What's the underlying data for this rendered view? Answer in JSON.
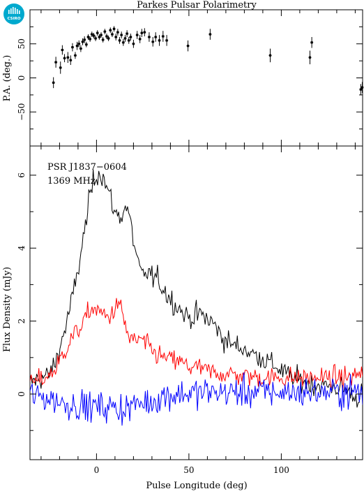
{
  "header": {
    "title": "Parkes Pulsar Polarimetry",
    "logo_text": "CSIRO"
  },
  "chart_data": [
    {
      "type": "scatter",
      "panel": "top",
      "ylabel": "P.A. (deg.)",
      "xlim": [
        -36,
        144
      ],
      "ylim": [
        -100,
        100
      ],
      "yticks": [
        -50,
        0,
        50
      ],
      "xticks": [
        0,
        50,
        100
      ],
      "points": [
        {
          "x": -23.3,
          "y": -7,
          "err": 8
        },
        {
          "x": -22.0,
          "y": 23,
          "err": 8
        },
        {
          "x": -19.5,
          "y": 15,
          "err": 9
        },
        {
          "x": -18.5,
          "y": 41,
          "err": 7
        },
        {
          "x": -17.3,
          "y": 29,
          "err": 6
        },
        {
          "x": -15.5,
          "y": 30,
          "err": 8
        },
        {
          "x": -14.0,
          "y": 26,
          "err": 7
        },
        {
          "x": -13.0,
          "y": 45,
          "err": 6
        },
        {
          "x": -11.5,
          "y": 33,
          "err": 5
        },
        {
          "x": -10.5,
          "y": 47,
          "err": 6
        },
        {
          "x": -9.5,
          "y": 50,
          "err": 5
        },
        {
          "x": -8.5,
          "y": 43,
          "err": 5
        },
        {
          "x": -7.5,
          "y": 53,
          "err": 5
        },
        {
          "x": -6.5,
          "y": 56,
          "err": 5
        },
        {
          "x": -5.5,
          "y": 49,
          "err": 4
        },
        {
          "x": -4.5,
          "y": 60,
          "err": 4
        },
        {
          "x": -3.5,
          "y": 57,
          "err": 4
        },
        {
          "x": -2.5,
          "y": 64,
          "err": 4
        },
        {
          "x": -1.5,
          "y": 62,
          "err": 4
        },
        {
          "x": -0.5,
          "y": 58,
          "err": 4
        },
        {
          "x": 0.5,
          "y": 66,
          "err": 4
        },
        {
          "x": 1.5,
          "y": 60,
          "err": 4
        },
        {
          "x": 2.5,
          "y": 63,
          "err": 4
        },
        {
          "x": 3.5,
          "y": 56,
          "err": 4
        },
        {
          "x": 4.5,
          "y": 68,
          "err": 4
        },
        {
          "x": 5.5,
          "y": 61,
          "err": 4
        },
        {
          "x": 6.5,
          "y": 58,
          "err": 4
        },
        {
          "x": 7.5,
          "y": 70,
          "err": 4
        },
        {
          "x": 8.5,
          "y": 64,
          "err": 4
        },
        {
          "x": 9.5,
          "y": 72,
          "err": 4
        },
        {
          "x": 10.5,
          "y": 60,
          "err": 5
        },
        {
          "x": 11.5,
          "y": 67,
          "err": 5
        },
        {
          "x": 12.5,
          "y": 55,
          "err": 5
        },
        {
          "x": 13.5,
          "y": 63,
          "err": 5
        },
        {
          "x": 14.5,
          "y": 52,
          "err": 5
        },
        {
          "x": 15.5,
          "y": 58,
          "err": 5
        },
        {
          "x": 16.5,
          "y": 65,
          "err": 5
        },
        {
          "x": 17.5,
          "y": 55,
          "err": 5
        },
        {
          "x": 18.5,
          "y": 60,
          "err": 5
        },
        {
          "x": 20.0,
          "y": 50,
          "err": 6
        },
        {
          "x": 22.0,
          "y": 63,
          "err": 6
        },
        {
          "x": 23.5,
          "y": 57,
          "err": 6
        },
        {
          "x": 24.5,
          "y": 66,
          "err": 6
        },
        {
          "x": 26.0,
          "y": 67,
          "err": 6
        },
        {
          "x": 28.5,
          "y": 60,
          "err": 7
        },
        {
          "x": 30.5,
          "y": 53,
          "err": 7
        },
        {
          "x": 32.0,
          "y": 60,
          "err": 7
        },
        {
          "x": 34.0,
          "y": 55,
          "err": 8
        },
        {
          "x": 36.0,
          "y": 61,
          "err": 8
        },
        {
          "x": 38.0,
          "y": 55,
          "err": 8
        },
        {
          "x": 49.5,
          "y": 47,
          "err": 8
        },
        {
          "x": 61.5,
          "y": 64,
          "err": 8
        },
        {
          "x": 94.0,
          "y": 33,
          "err": 10
        },
        {
          "x": 115.5,
          "y": 30,
          "err": 10
        },
        {
          "x": 116.5,
          "y": 52,
          "err": 8
        },
        {
          "x": 143.0,
          "y": -17,
          "err": 8
        },
        {
          "x": 143.8,
          "y": -14,
          "err": 8
        }
      ]
    },
    {
      "type": "line",
      "panel": "bottom",
      "xlabel": "Pulse Longitude (deg)",
      "ylabel": "Flux Density (mJy)",
      "annotations": [
        "PSR J1837−0604",
        "1369 MHz"
      ],
      "xlim": [
        -36,
        144
      ],
      "ylim": [
        -1.8,
        6.8
      ],
      "yticks": [
        0,
        2,
        4,
        6
      ],
      "xticks": [
        0,
        50,
        100
      ],
      "sample_step": 0.6,
      "series": [
        {
          "color": "#000000",
          "anchors": [
            [
              -36,
              0.3
            ],
            [
              -30,
              0.45
            ],
            [
              -26,
              0.5
            ],
            [
              -22,
              0.9
            ],
            [
              -18,
              1.6
            ],
            [
              -16,
              2.0
            ],
            [
              -14,
              2.4
            ],
            [
              -12,
              2.9
            ],
            [
              -10,
              3.4
            ],
            [
              -8,
              4.0
            ],
            [
              -6,
              4.6
            ],
            [
              -4,
              5.3
            ],
            [
              -2,
              5.8
            ],
            [
              0,
              6.0
            ],
            [
              2,
              6.1
            ],
            [
              4,
              5.9
            ],
            [
              6,
              5.6
            ],
            [
              8,
              5.3
            ],
            [
              10,
              4.95
            ],
            [
              12,
              4.9
            ],
            [
              14,
              4.9
            ],
            [
              16,
              5.2
            ],
            [
              18,
              4.8
            ],
            [
              20,
              4.2
            ],
            [
              22,
              3.7
            ],
            [
              24,
              3.3
            ],
            [
              26,
              3.15
            ],
            [
              28,
              3.4
            ],
            [
              30,
              3.2
            ],
            [
              33,
              3.15
            ],
            [
              36,
              2.9
            ],
            [
              40,
              2.6
            ],
            [
              44,
              2.4
            ],
            [
              48,
              2.15
            ],
            [
              52,
              2.1
            ],
            [
              56,
              2.2
            ],
            [
              60,
              2.05
            ],
            [
              64,
              1.9
            ],
            [
              68,
              1.55
            ],
            [
              72,
              1.4
            ],
            [
              76,
              1.3
            ],
            [
              80,
              1.25
            ],
            [
              84,
              1.1
            ],
            [
              88,
              1.05
            ],
            [
              92,
              0.9
            ],
            [
              96,
              0.8
            ],
            [
              100,
              0.65
            ],
            [
              104,
              0.5
            ],
            [
              108,
              0.4
            ],
            [
              114,
              0.3
            ],
            [
              120,
              0.25
            ],
            [
              128,
              0.2
            ],
            [
              136,
              0.1
            ],
            [
              140,
              -0.1
            ],
            [
              144,
              0.0
            ]
          ],
          "noise": 0.22
        },
        {
          "color": "#ff0000",
          "anchors": [
            [
              -36,
              0.3
            ],
            [
              -30,
              0.4
            ],
            [
              -26,
              0.5
            ],
            [
              -22,
              0.7
            ],
            [
              -18,
              1.1
            ],
            [
              -14,
              1.5
            ],
            [
              -10,
              1.75
            ],
            [
              -6,
              2.05
            ],
            [
              -3,
              2.35
            ],
            [
              0,
              2.3
            ],
            [
              3,
              2.2
            ],
            [
              6,
              2.1
            ],
            [
              9,
              2.25
            ],
            [
              12,
              2.5
            ],
            [
              14,
              2.2
            ],
            [
              16,
              1.8
            ],
            [
              18,
              1.5
            ],
            [
              20,
              1.45
            ],
            [
              24,
              1.5
            ],
            [
              28,
              1.3
            ],
            [
              32,
              1.1
            ],
            [
              36,
              1.0
            ],
            [
              40,
              0.95
            ],
            [
              44,
              0.9
            ],
            [
              50,
              0.75
            ],
            [
              56,
              0.7
            ],
            [
              62,
              0.6
            ],
            [
              70,
              0.55
            ],
            [
              80,
              0.5
            ],
            [
              90,
              0.45
            ],
            [
              100,
              0.45
            ],
            [
              110,
              0.45
            ],
            [
              120,
              0.45
            ],
            [
              130,
              0.45
            ],
            [
              136,
              0.45
            ],
            [
              140,
              0.5
            ],
            [
              144,
              0.6
            ]
          ],
          "noise": 0.2
        },
        {
          "color": "#0000ff",
          "anchors": [
            [
              -36,
              -0.05
            ],
            [
              -26,
              -0.1
            ],
            [
              -18,
              -0.25
            ],
            [
              -10,
              -0.3
            ],
            [
              -4,
              -0.35
            ],
            [
              0,
              -0.35
            ],
            [
              6,
              -0.35
            ],
            [
              12,
              -0.4
            ],
            [
              18,
              -0.35
            ],
            [
              24,
              -0.25
            ],
            [
              30,
              -0.2
            ],
            [
              36,
              -0.05
            ],
            [
              44,
              0.0
            ],
            [
              60,
              0.05
            ],
            [
              80,
              0.05
            ],
            [
              100,
              0.05
            ],
            [
              120,
              0.05
            ],
            [
              144,
              0.05
            ]
          ],
          "noise": 0.3
        }
      ]
    }
  ]
}
